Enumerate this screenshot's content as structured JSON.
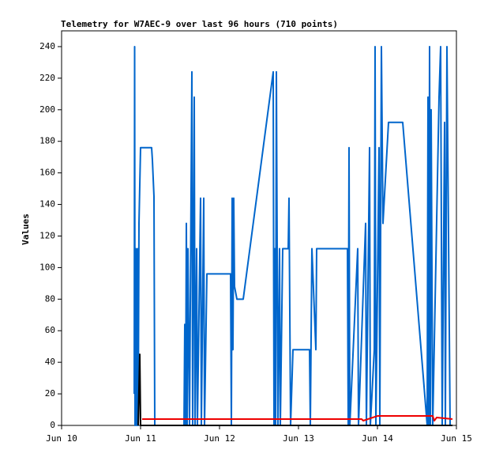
{
  "chart_data": {
    "type": "line",
    "title": "Telemetry for W7AEC-9 over last 96 hours (710 points)",
    "y_label": "Values",
    "xlim": [
      10,
      15
    ],
    "xticks": [
      {
        "value": 10,
        "label": "Jun 10"
      },
      {
        "value": 11,
        "label": "Jun 11"
      },
      {
        "value": 12,
        "label": "Jun 12"
      },
      {
        "value": 13,
        "label": "Jun 13"
      },
      {
        "value": 14,
        "label": "Jun 14"
      },
      {
        "value": 15,
        "label": "Jun 15"
      }
    ],
    "ylim": [
      0,
      250
    ],
    "yticks": [
      0,
      20,
      40,
      60,
      80,
      100,
      120,
      140,
      160,
      180,
      200,
      220,
      240
    ],
    "series": [
      {
        "color": "#0066cc",
        "x": [
          10.92,
          10.925,
          10.93,
          10.935,
          10.94,
          10.95,
          10.96,
          10.965,
          10.97,
          10.98,
          11.0,
          11.14,
          11.15,
          11.17,
          11.18,
          11.55,
          11.56,
          11.57,
          11.58,
          11.59,
          11.6,
          11.62,
          11.65,
          11.66,
          11.68,
          11.69,
          11.71,
          11.72,
          11.76,
          11.77,
          11.8,
          11.81,
          11.84,
          12.14,
          12.15,
          12.16,
          12.17,
          12.18,
          12.19,
          12.22,
          12.3,
          12.68,
          12.69,
          12.7,
          12.71,
          12.72,
          12.74,
          12.76,
          12.77,
          12.8,
          12.87,
          12.88,
          12.9,
          12.93,
          13.14,
          13.15,
          13.17,
          13.22,
          13.23,
          13.62,
          13.63,
          13.64,
          13.65,
          13.75,
          13.76,
          13.85,
          13.86,
          13.9,
          13.91,
          13.96,
          13.97,
          13.98,
          14.02,
          14.03,
          14.05,
          14.07,
          14.14,
          14.32,
          14.63,
          14.64,
          14.65,
          14.66,
          14.67,
          14.68,
          14.7,
          14.78,
          14.8,
          14.82,
          14.85,
          14.86,
          14.88,
          14.92
        ],
        "values": [
          20,
          240,
          0,
          30,
          112,
          0,
          112,
          48,
          0,
          128,
          176,
          176,
          168,
          145,
          0,
          0,
          64,
          0,
          128,
          0,
          112,
          0,
          224,
          0,
          208,
          0,
          112,
          0,
          144,
          0,
          144,
          0,
          96,
          96,
          0,
          144,
          48,
          144,
          88,
          80,
          80,
          224,
          0,
          112,
          0,
          224,
          0,
          112,
          0,
          112,
          112,
          144,
          0,
          48,
          48,
          0,
          112,
          48,
          112,
          112,
          0,
          176,
          0,
          112,
          0,
          128,
          0,
          176,
          0,
          48,
          240,
          0,
          176,
          0,
          240,
          128,
          192,
          192,
          0,
          208,
          0,
          240,
          0,
          200,
          0,
          208,
          240,
          0,
          192,
          0,
          240,
          0
        ]
      },
      {
        "color": "#ee0000",
        "x": [
          11.02,
          13.8,
          13.82,
          14.0,
          14.7,
          14.72,
          14.75,
          14.95
        ],
        "values": [
          4,
          4,
          3,
          6,
          6,
          3,
          5,
          4
        ]
      },
      {
        "color": "#000000",
        "x": [
          10.97,
          10.99,
          11.0,
          14.95
        ],
        "values": [
          0,
          45,
          0,
          0
        ]
      }
    ]
  }
}
